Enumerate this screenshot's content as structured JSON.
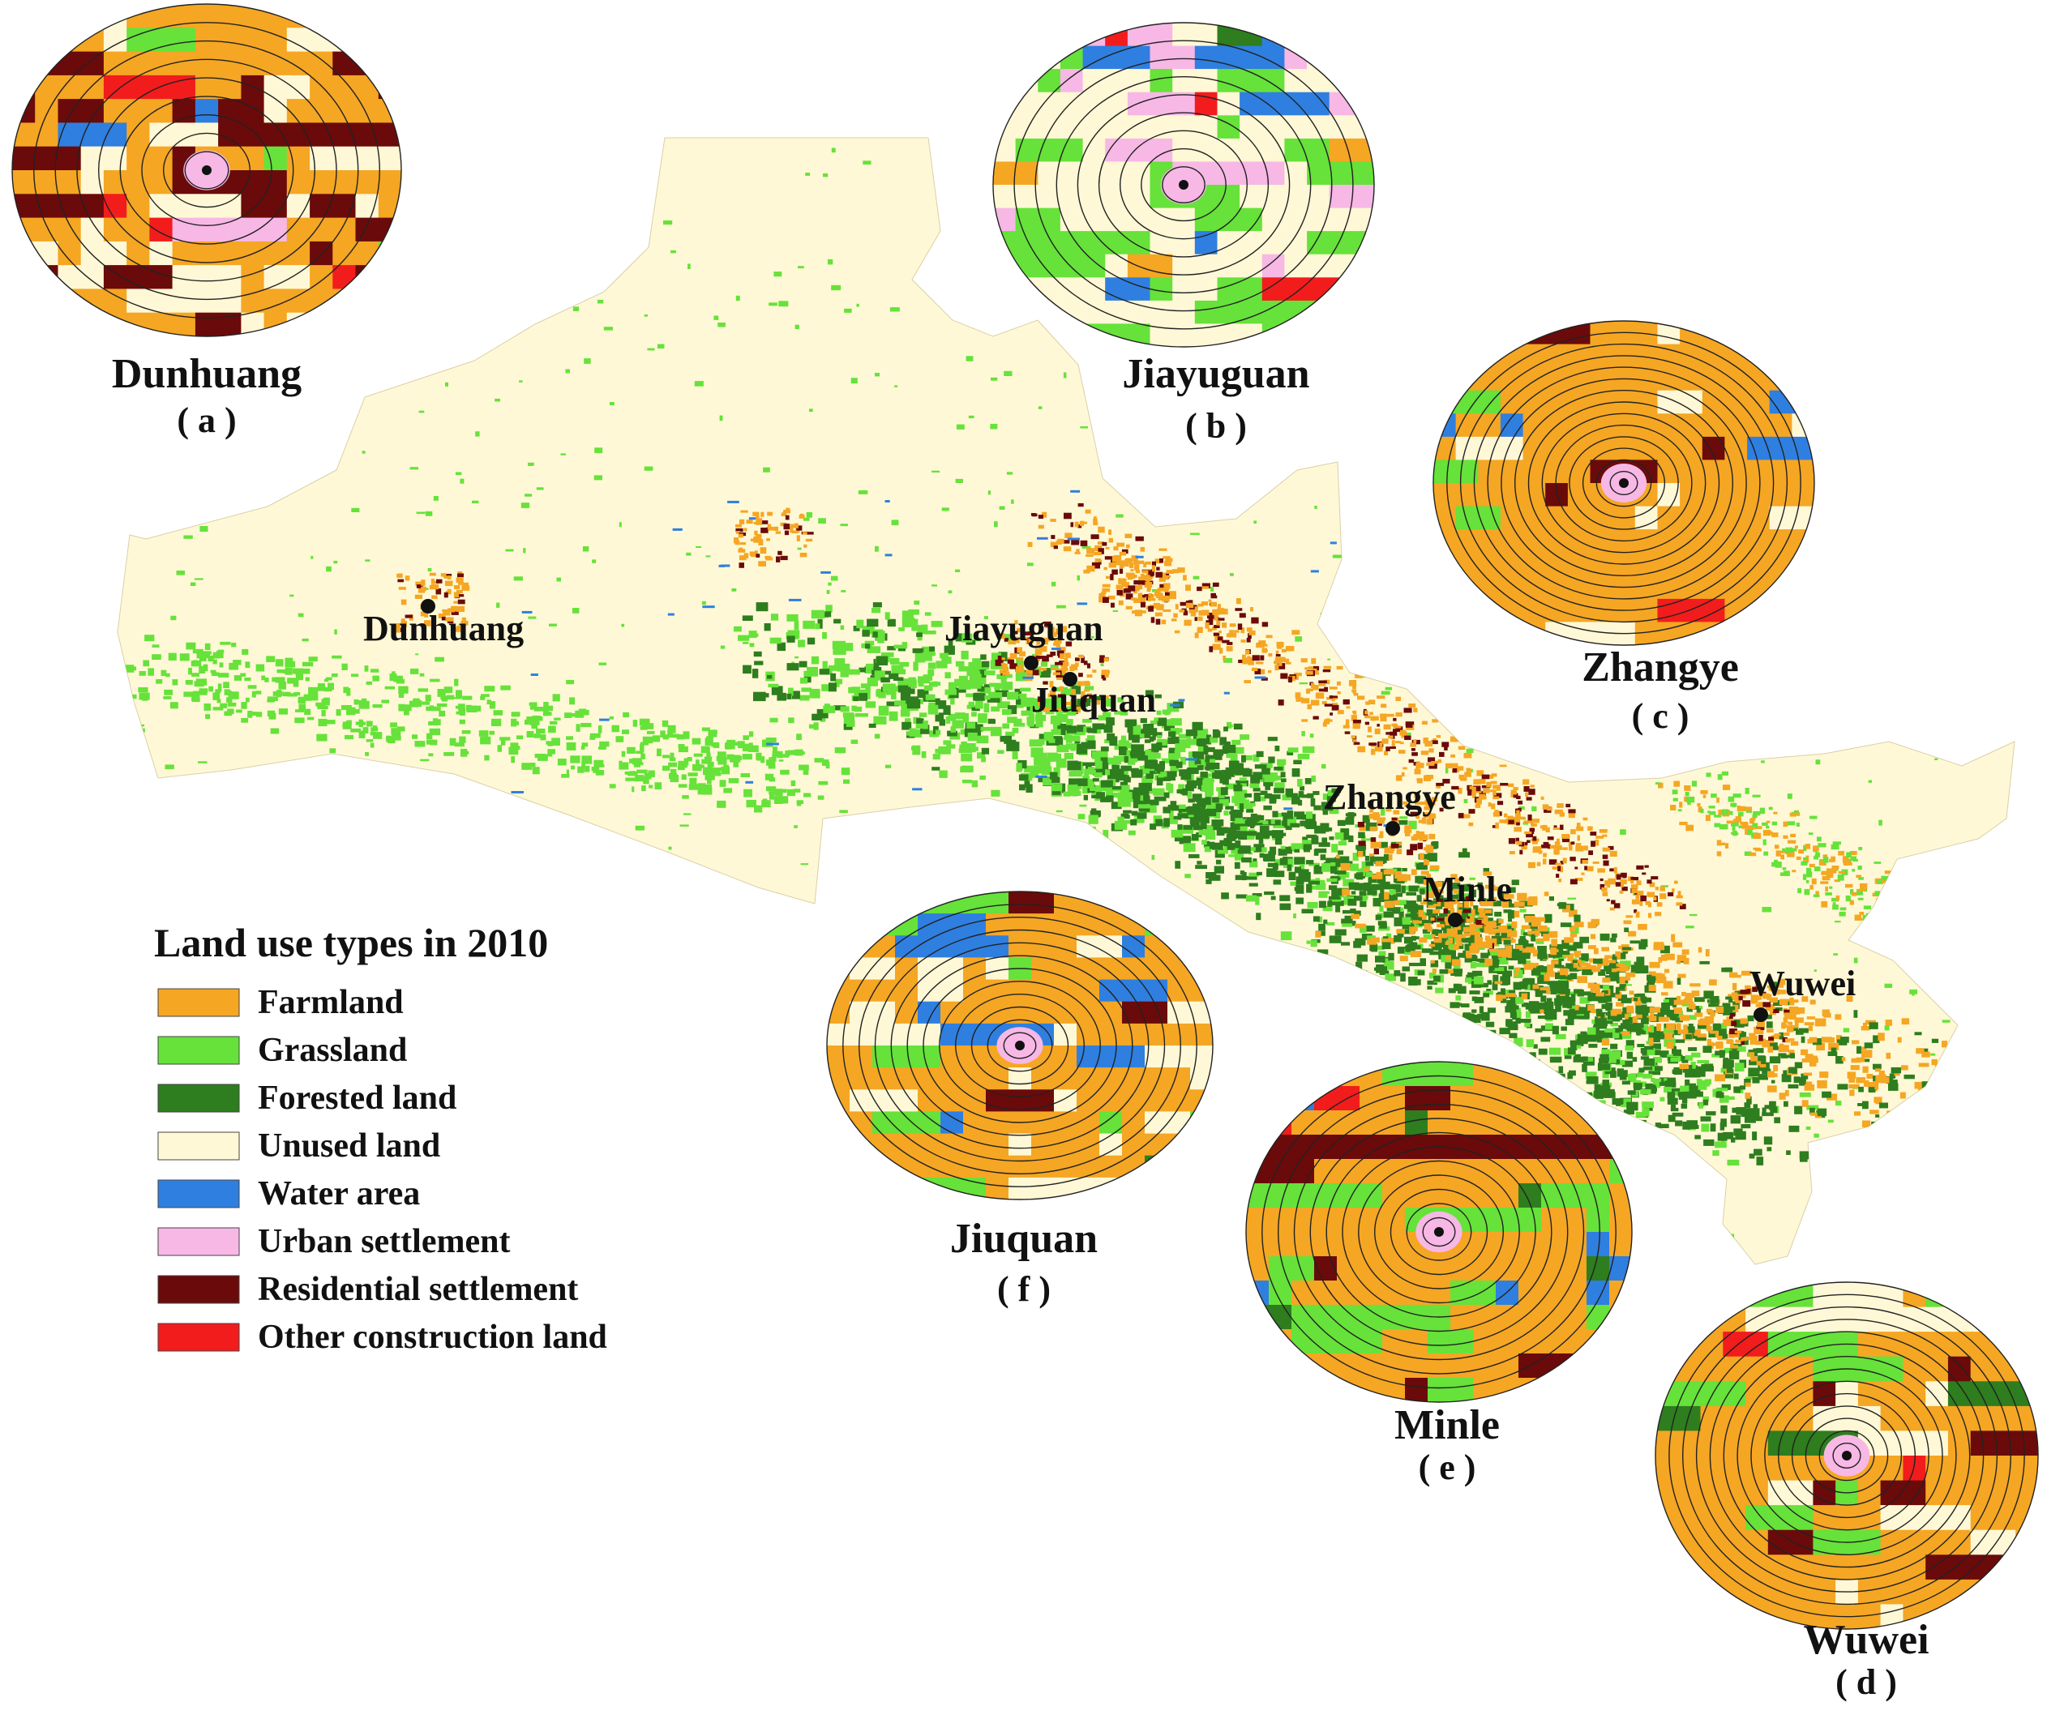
{
  "colors": {
    "farmland": "#F5A623",
    "grassland": "#66E23A",
    "forested": "#2E7D1E",
    "unused": "#FFF8D6",
    "water": "#2F7FE0",
    "urban": "#F7B8E6",
    "residential": "#6B0A0A",
    "other": "#F21C1C"
  },
  "legend": {
    "title": "Land use types in 2010",
    "items": [
      {
        "key": "farmland",
        "label": "Farmland"
      },
      {
        "key": "grassland",
        "label": "Grassland"
      },
      {
        "key": "forested",
        "label": "Forested land"
      },
      {
        "key": "unused",
        "label": "Unused land"
      },
      {
        "key": "water",
        "label": "Water area"
      },
      {
        "key": "urban",
        "label": "Urban settlement"
      },
      {
        "key": "residential",
        "label": "Residential settlement"
      },
      {
        "key": "other",
        "label": "Other construction land"
      }
    ]
  },
  "cities": [
    {
      "id": "dunhuang",
      "name": "Dunhuang"
    },
    {
      "id": "jiayuguan",
      "name": "Jiayuguan"
    },
    {
      "id": "jiuquan",
      "name": "Jiuquan"
    },
    {
      "id": "zhangye",
      "name": "Zhangye"
    },
    {
      "id": "minle",
      "name": "Minle"
    },
    {
      "id": "wuwei",
      "name": "Wuwei"
    }
  ],
  "panels": [
    {
      "id": "a",
      "name": "Dunhuang",
      "letter": "( a )",
      "mix": {
        "farmland": 0.42,
        "residential": 0.22,
        "unused": 0.26,
        "water": 0.03,
        "urban": 0.02,
        "grassland": 0.03,
        "other": 0.02
      }
    },
    {
      "id": "b",
      "name": "Jiayuguan",
      "letter": "( b )",
      "mix": {
        "unused": 0.55,
        "grassland": 0.2,
        "urban": 0.09,
        "other": 0.05,
        "water": 0.04,
        "forested": 0.03,
        "residential": 0.02,
        "farmland": 0.02
      }
    },
    {
      "id": "c",
      "name": "Zhangye",
      "letter": "( c )",
      "mix": {
        "farmland": 0.66,
        "unused": 0.14,
        "residential": 0.08,
        "water": 0.04,
        "grassland": 0.05,
        "forested": 0.02,
        "other": 0.01
      }
    },
    {
      "id": "d",
      "name": "Wuwei",
      "letter": "( d )",
      "mix": {
        "farmland": 0.66,
        "unused": 0.12,
        "residential": 0.08,
        "grassland": 0.1,
        "forested": 0.02,
        "urban": 0.01,
        "other": 0.01
      }
    },
    {
      "id": "e",
      "name": "Minle",
      "letter": "( e )",
      "mix": {
        "farmland": 0.6,
        "grassland": 0.24,
        "residential": 0.06,
        "water": 0.05,
        "forested": 0.04,
        "other": 0.01
      }
    },
    {
      "id": "f",
      "name": "Jiuquan",
      "letter": "( f )",
      "mix": {
        "farmland": 0.52,
        "unused": 0.22,
        "grassland": 0.12,
        "water": 0.07,
        "residential": 0.04,
        "forested": 0.02,
        "other": 0.01
      }
    }
  ]
}
